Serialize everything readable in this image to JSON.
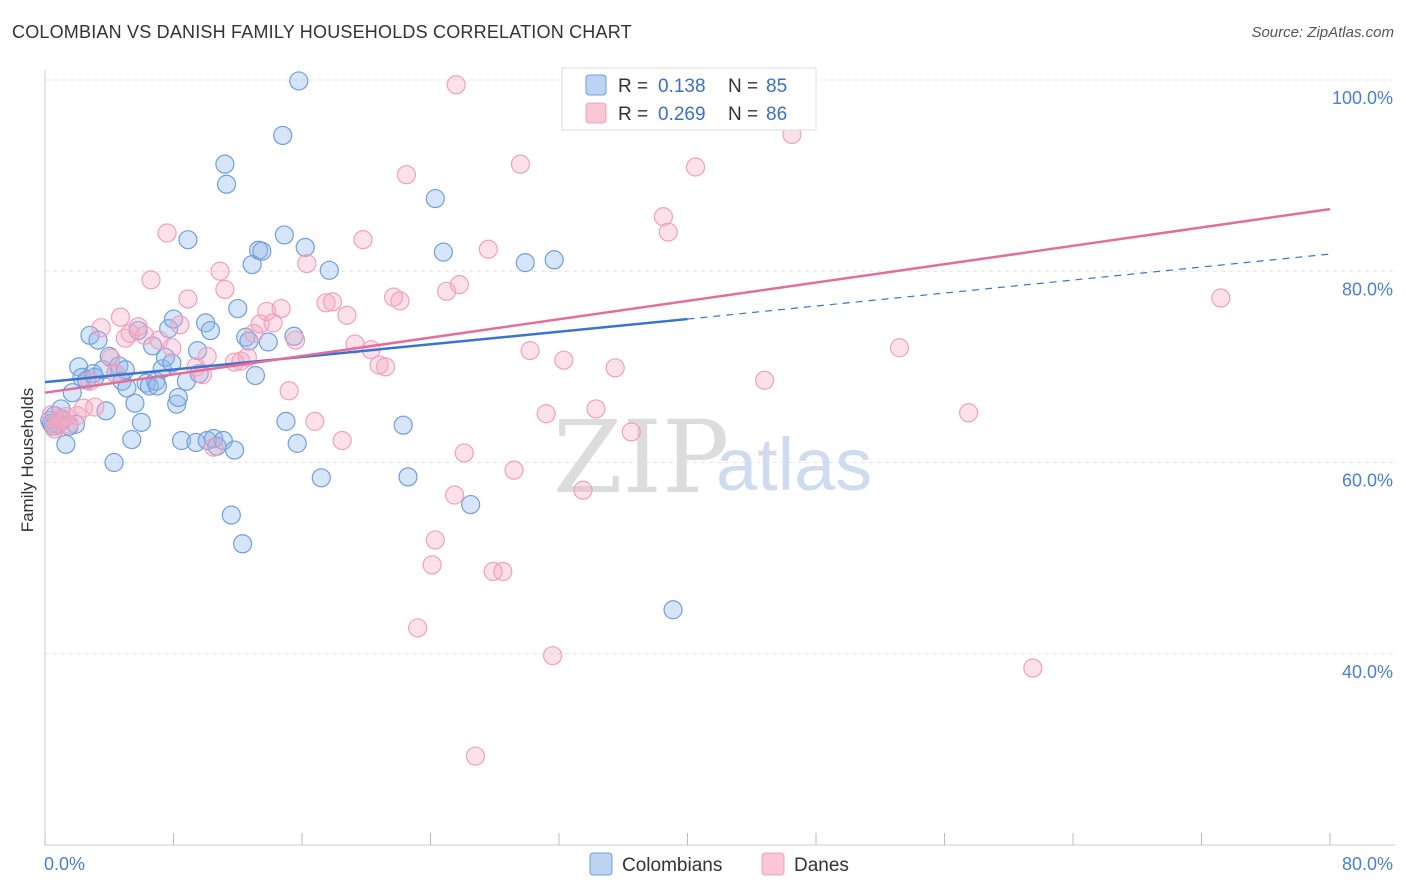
{
  "title": "COLOMBIAN VS DANISH FAMILY HOUSEHOLDS CORRELATION CHART",
  "source": "Source: ZipAtlas.com",
  "watermark": {
    "zip": "ZIP",
    "atlas": "atlas"
  },
  "colors": {
    "blue": "#6f9fdd",
    "blue_line": "#3a74d0",
    "pink": "#f0a0bc",
    "pink_line": "#e46e9a",
    "tick": "#4a7fd0"
  },
  "chart_data": {
    "type": "scatter",
    "title": "COLOMBIAN VS DANISH FAMILY HOUSEHOLDS CORRELATION CHART",
    "xlabel": "",
    "ylabel": "Family Households",
    "xlim": [
      0,
      80
    ],
    "ylim": [
      20,
      100
    ],
    "x_tick_labels": [
      "0.0%",
      "80.0%"
    ],
    "y_ticks": [
      40,
      60,
      80,
      100
    ],
    "y_tick_labels": [
      "40.0%",
      "60.0%",
      "80.0%",
      "100.0%"
    ],
    "grid": true,
    "legend_position": "top-center",
    "stats": [
      {
        "r_label": "R =",
        "r": "0.138",
        "n_label": "N =",
        "n": "85"
      },
      {
        "r_label": "R =",
        "r": "0.269",
        "n_label": "N =",
        "n": "86"
      }
    ],
    "series": [
      {
        "name": "Colombians",
        "trend": {
          "x0": 0,
          "y0": 68.4,
          "x1": 40,
          "y1": 75.0,
          "dash_to_x": 80,
          "dash_to_y": 81.8
        },
        "points": [
          [
            0.3,
            64.4
          ],
          [
            0.5,
            63.8
          ],
          [
            0.6,
            64.9
          ],
          [
            0.8,
            64.0
          ],
          [
            1.0,
            65.6
          ],
          [
            1.1,
            64.5
          ],
          [
            1.3,
            61.9
          ],
          [
            1.5,
            63.8
          ],
          [
            1.7,
            67.3
          ],
          [
            1.9,
            64.0
          ],
          [
            2.1,
            70.0
          ],
          [
            2.3,
            68.9
          ],
          [
            2.6,
            68.6
          ],
          [
            2.8,
            73.3
          ],
          [
            3.0,
            69.3
          ],
          [
            3.1,
            68.9
          ],
          [
            3.3,
            72.8
          ],
          [
            3.6,
            69.7
          ],
          [
            3.8,
            65.4
          ],
          [
            4.0,
            71.1
          ],
          [
            4.3,
            60.0
          ],
          [
            4.4,
            69.3
          ],
          [
            4.6,
            70.1
          ],
          [
            4.8,
            68.5
          ],
          [
            5.0,
            69.7
          ],
          [
            5.1,
            67.8
          ],
          [
            5.4,
            62.4
          ],
          [
            5.6,
            66.2
          ],
          [
            5.8,
            73.8
          ],
          [
            6.0,
            64.2
          ],
          [
            6.3,
            68.3
          ],
          [
            6.5,
            68.0
          ],
          [
            6.7,
            72.2
          ],
          [
            6.9,
            68.5
          ],
          [
            7.0,
            68.0
          ],
          [
            7.3,
            69.8
          ],
          [
            7.5,
            71.0
          ],
          [
            7.7,
            74.0
          ],
          [
            7.9,
            70.4
          ],
          [
            8.0,
            75.0
          ],
          [
            8.2,
            66.1
          ],
          [
            8.3,
            66.8
          ],
          [
            8.5,
            62.3
          ],
          [
            8.8,
            68.5
          ],
          [
            8.9,
            83.3
          ],
          [
            9.4,
            62.1
          ],
          [
            9.5,
            71.7
          ],
          [
            9.6,
            69.3
          ],
          [
            10.0,
            74.6
          ],
          [
            10.1,
            62.3
          ],
          [
            10.3,
            73.8
          ],
          [
            10.5,
            62.5
          ],
          [
            10.7,
            61.7
          ],
          [
            11.1,
            62.3
          ],
          [
            11.2,
            91.2
          ],
          [
            11.3,
            89.1
          ],
          [
            11.6,
            54.5
          ],
          [
            11.8,
            61.3
          ],
          [
            12.0,
            76.1
          ],
          [
            12.3,
            51.5
          ],
          [
            12.5,
            73.1
          ],
          [
            12.7,
            72.7
          ],
          [
            12.9,
            80.7
          ],
          [
            13.1,
            69.1
          ],
          [
            13.3,
            82.2
          ],
          [
            13.5,
            82.1
          ],
          [
            13.9,
            72.6
          ],
          [
            14.8,
            94.2
          ],
          [
            14.9,
            83.8
          ],
          [
            15.0,
            64.3
          ],
          [
            15.5,
            73.2
          ],
          [
            15.7,
            62.0
          ],
          [
            15.8,
            99.9
          ],
          [
            16.2,
            82.5
          ],
          [
            17.2,
            58.4
          ],
          [
            17.7,
            80.1
          ],
          [
            22.3,
            63.9
          ],
          [
            22.6,
            58.5
          ],
          [
            24.3,
            87.6
          ],
          [
            24.8,
            82.0
          ],
          [
            26.5,
            55.6
          ],
          [
            29.9,
            80.9
          ],
          [
            31.7,
            81.2
          ],
          [
            39.1,
            44.6
          ],
          [
            0.4,
            64.1
          ]
        ]
      },
      {
        "name": "Danes",
        "trend": {
          "x0": 0,
          "y0": 67.3,
          "x1": 80,
          "y1": 86.5
        },
        "points": [
          [
            0.4,
            65.0
          ],
          [
            0.6,
            63.5
          ],
          [
            0.7,
            63.8
          ],
          [
            0.9,
            64.5
          ],
          [
            1.1,
            64.4
          ],
          [
            1.3,
            64.8
          ],
          [
            1.5,
            64.0
          ],
          [
            2.0,
            64.9
          ],
          [
            2.4,
            65.7
          ],
          [
            2.8,
            68.5
          ],
          [
            3.1,
            65.8
          ],
          [
            3.5,
            74.1
          ],
          [
            4.1,
            70.9
          ],
          [
            4.4,
            69.3
          ],
          [
            4.7,
            75.2
          ],
          [
            5.0,
            73.0
          ],
          [
            5.3,
            73.5
          ],
          [
            5.8,
            74.2
          ],
          [
            6.2,
            73.3
          ],
          [
            6.6,
            79.1
          ],
          [
            7.1,
            72.8
          ],
          [
            7.6,
            84.0
          ],
          [
            7.9,
            72.0
          ],
          [
            8.4,
            74.4
          ],
          [
            8.9,
            77.1
          ],
          [
            9.4,
            70.0
          ],
          [
            9.8,
            69.2
          ],
          [
            10.1,
            71.1
          ],
          [
            10.5,
            61.6
          ],
          [
            10.9,
            80.0
          ],
          [
            11.2,
            78.1
          ],
          [
            11.8,
            70.5
          ],
          [
            12.2,
            70.6
          ],
          [
            12.6,
            71.0
          ],
          [
            13.0,
            73.5
          ],
          [
            13.4,
            74.5
          ],
          [
            13.8,
            75.8
          ],
          [
            14.2,
            74.6
          ],
          [
            14.7,
            76.1
          ],
          [
            15.2,
            67.5
          ],
          [
            15.6,
            72.8
          ],
          [
            16.3,
            80.8
          ],
          [
            16.8,
            64.3
          ],
          [
            17.5,
            76.7
          ],
          [
            17.9,
            76.8
          ],
          [
            18.5,
            62.3
          ],
          [
            18.8,
            75.4
          ],
          [
            19.3,
            72.4
          ],
          [
            19.8,
            83.3
          ],
          [
            20.3,
            71.8
          ],
          [
            20.8,
            70.2
          ],
          [
            21.2,
            70.0
          ],
          [
            21.7,
            77.3
          ],
          [
            22.1,
            76.9
          ],
          [
            22.5,
            90.1
          ],
          [
            23.2,
            42.7
          ],
          [
            24.1,
            49.3
          ],
          [
            24.3,
            51.9
          ],
          [
            25.0,
            77.9
          ],
          [
            25.5,
            56.6
          ],
          [
            25.8,
            78.6
          ],
          [
            26.1,
            61.0
          ],
          [
            26.8,
            29.3
          ],
          [
            27.6,
            82.3
          ],
          [
            27.9,
            48.6
          ],
          [
            28.5,
            48.6
          ],
          [
            29.2,
            59.2
          ],
          [
            29.6,
            91.2
          ],
          [
            30.2,
            71.7
          ],
          [
            31.2,
            65.1
          ],
          [
            31.6,
            39.8
          ],
          [
            32.3,
            70.7
          ],
          [
            33.5,
            57.1
          ],
          [
            34.3,
            65.6
          ],
          [
            35.5,
            69.9
          ],
          [
            36.5,
            63.2
          ],
          [
            38.5,
            85.7
          ],
          [
            38.8,
            84.1
          ],
          [
            40.5,
            90.9
          ],
          [
            44.8,
            68.6
          ],
          [
            46.5,
            94.3
          ],
          [
            53.2,
            72.0
          ],
          [
            57.5,
            65.2
          ],
          [
            61.5,
            38.5
          ],
          [
            73.2,
            77.2
          ],
          [
            25.6,
            99.5
          ]
        ]
      }
    ]
  }
}
